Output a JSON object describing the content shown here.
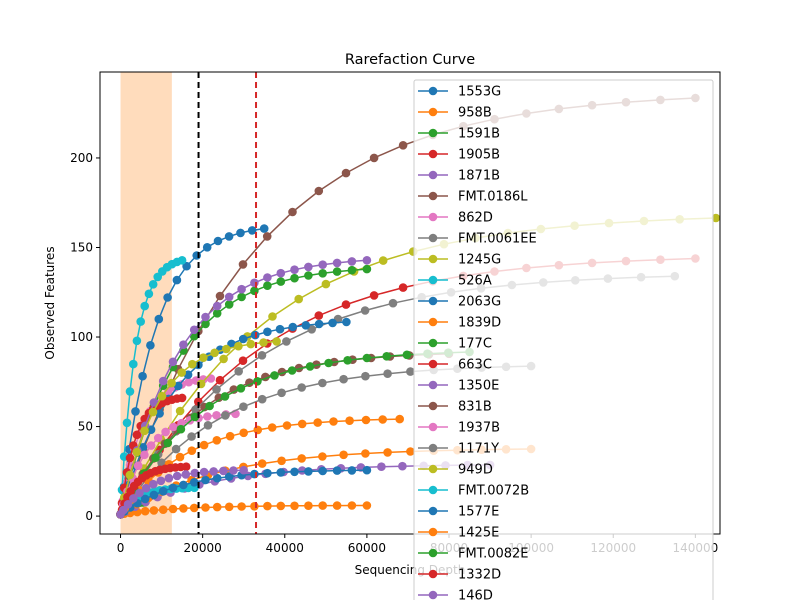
{
  "chart_data": {
    "type": "line",
    "title": "Rarefaction Curve",
    "xlabel": "Sequencing Depth",
    "ylabel": "Observed Features",
    "xlim": [
      -5000,
      146000
    ],
    "ylim": [
      -10,
      248
    ],
    "xticks": [
      0,
      20000,
      40000,
      60000,
      80000,
      100000,
      120000,
      140000
    ],
    "xtick_labels": [
      "0",
      "20000",
      "40000",
      "60000",
      "80000",
      "100000",
      "120000",
      "140000"
    ],
    "yticks": [
      0,
      50,
      100,
      150,
      200
    ],
    "ytick_labels": [
      "0",
      "50",
      "100",
      "150",
      "200"
    ],
    "shaded_region": {
      "x0": 0,
      "x1": 12500,
      "color": "#ffdcbc"
    },
    "vlines": [
      {
        "x": 19000,
        "color": "#000000",
        "style": "dashed"
      },
      {
        "x": 33000,
        "color": "#d62728",
        "style": "dashed"
      }
    ],
    "legend_position": "upper-right",
    "series": [
      {
        "name": "1553G",
        "color": "#1f77b4",
        "max_depth": 35000,
        "plateau": 163
      },
      {
        "name": "958B",
        "color": "#ff7f0e",
        "max_depth": 60000,
        "plateau": 6
      },
      {
        "name": "1591B",
        "color": "#2ca02c",
        "max_depth": 6000,
        "plateau": 8
      },
      {
        "name": "1905B",
        "color": "#d62728",
        "max_depth": 140000,
        "plateau": 146
      },
      {
        "name": "1871B",
        "color": "#9467bd",
        "max_depth": 90000,
        "plateau": 29
      },
      {
        "name": "FMT.0186L",
        "color": "#8c564b",
        "max_depth": 140000,
        "plateau": 237
      },
      {
        "name": "862D",
        "color": "#e377c2",
        "max_depth": 22000,
        "plateau": 78
      },
      {
        "name": "FMT.0061EE",
        "color": "#7f7f7f",
        "max_depth": 135000,
        "plateau": 136
      },
      {
        "name": "1245G",
        "color": "#bcbd22",
        "max_depth": 145000,
        "plateau": 169
      },
      {
        "name": "526A",
        "color": "#17becf",
        "max_depth": 15000,
        "plateau": 145
      },
      {
        "name": "2063G",
        "color": "#1f77b4",
        "max_depth": 55000,
        "plateau": 110
      },
      {
        "name": "1839D",
        "color": "#ff7f0e",
        "max_depth": 100000,
        "plateau": 38
      },
      {
        "name": "177C",
        "color": "#2ca02c",
        "max_depth": 60000,
        "plateau": 140
      },
      {
        "name": "663C",
        "color": "#d62728",
        "max_depth": 15000,
        "plateau": 67
      },
      {
        "name": "1350E",
        "color": "#9467bd",
        "max_depth": 60000,
        "plateau": 145
      },
      {
        "name": "831B",
        "color": "#8c564b",
        "max_depth": 80000,
        "plateau": 92
      },
      {
        "name": "1937B",
        "color": "#e377c2",
        "max_depth": 28000,
        "plateau": 58
      },
      {
        "name": "1171Y",
        "color": "#7f7f7f",
        "max_depth": 100000,
        "plateau": 85
      },
      {
        "name": "949D",
        "color": "#bcbd22",
        "max_depth": 38000,
        "plateau": 99
      },
      {
        "name": "FMT.0072B",
        "color": "#17becf",
        "max_depth": 18000,
        "plateau": 16
      },
      {
        "name": "1577E",
        "color": "#1f77b4",
        "max_depth": 60000,
        "plateau": 26
      },
      {
        "name": "1425E",
        "color": "#ff7f0e",
        "max_depth": 68000,
        "plateau": 55
      },
      {
        "name": "FMT.0082E",
        "color": "#2ca02c",
        "max_depth": 85000,
        "plateau": 93
      },
      {
        "name": "1332D",
        "color": "#d62728",
        "max_depth": 16000,
        "plateau": 28
      },
      {
        "name": "146D",
        "color": "#9467bd",
        "max_depth": 30000,
        "plateau": 26
      }
    ]
  }
}
